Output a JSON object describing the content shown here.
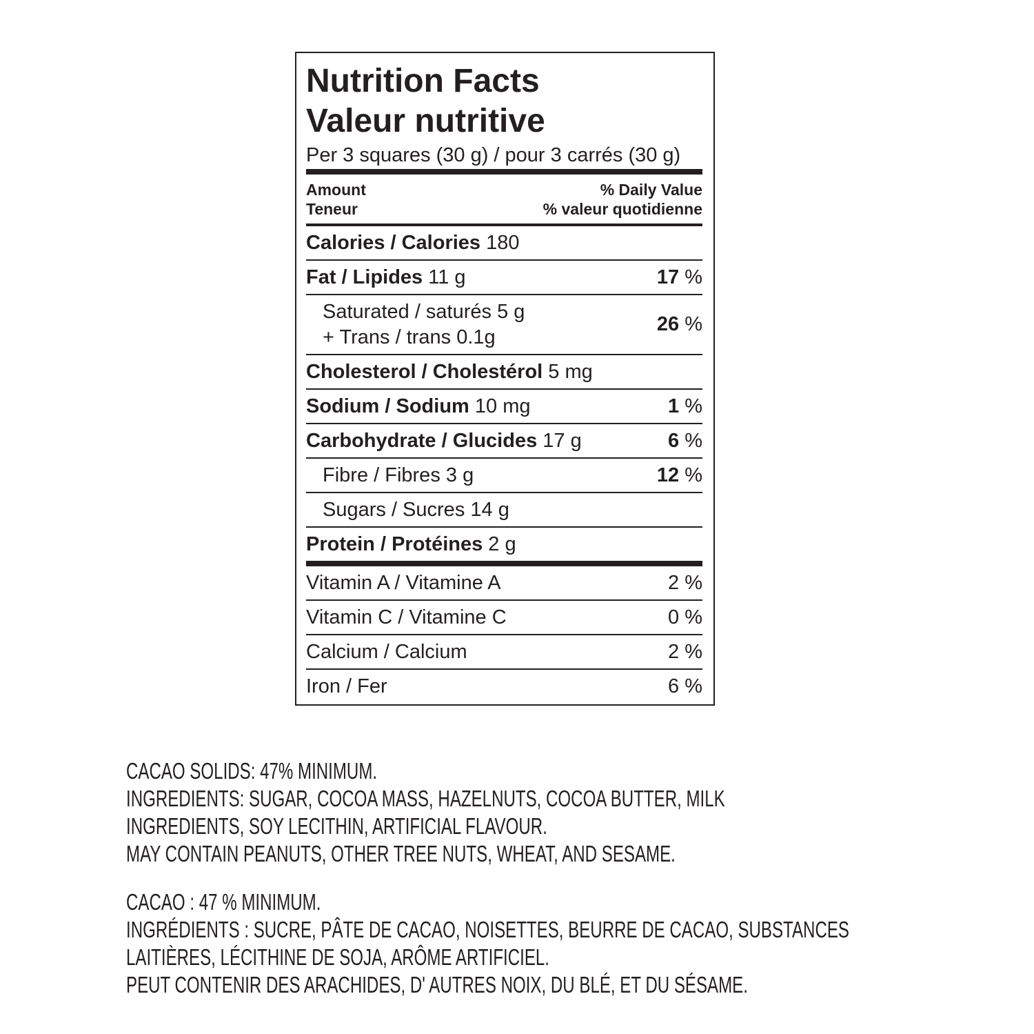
{
  "label": {
    "title": "Nutrition Facts",
    "title_fr": "Valeur nutritive",
    "serving": "Per 3 squares (30 g) / pour 3 carrés (30 g)",
    "amount": "Amount",
    "amount_fr": "Teneur",
    "daily_value": "% Daily Value",
    "daily_value_fr": "% valeur quotidienne",
    "rows": [
      {
        "name": "Calories / Calories",
        "amount": "180"
      },
      {
        "name": "Fat / Lipides",
        "amount": "11 g",
        "dv": "17",
        "dv_unit": "%"
      },
      {
        "name": "Saturated / saturés",
        "amount": "5 g",
        "name2": "+ Trans / trans",
        "amount2": "0.1g",
        "dv": "26",
        "dv_unit": "%"
      },
      {
        "name": "Cholesterol / Cholestérol",
        "amount": "5 mg"
      },
      {
        "name": "Sodium / Sodium",
        "amount": "10 mg",
        "dv": "1",
        "dv_unit": "%"
      },
      {
        "name": "Carbohydrate / Glucides",
        "amount": "17 g",
        "dv": "6",
        "dv_unit": "%"
      },
      {
        "name": "Fibre / Fibres",
        "amount": "3 g",
        "dv": "12",
        "dv_unit": "%"
      },
      {
        "name": "Sugars / Sucres",
        "amount": "14 g"
      },
      {
        "name": "Protein / Protéines",
        "amount": "2 g"
      }
    ],
    "vitamins": [
      {
        "name": "Vitamin A / Vitamine A",
        "dv": "2",
        "dv_unit": "%"
      },
      {
        "name": "Vitamin C / Vitamine C",
        "dv": "0",
        "dv_unit": "%"
      },
      {
        "name": "Calcium / Calcium",
        "dv": "2",
        "dv_unit": "%"
      },
      {
        "name": "Iron / Fer",
        "dv": "6",
        "dv_unit": "%"
      }
    ]
  },
  "ingredients": [
    {
      "lines": [
        "CACAO SOLIDS: 47% MINIMUM.",
        "INGREDIENTS: SUGAR, COCOA MASS, HAZELNUTS, COCOA BUTTER, MILK",
        "INGREDIENTS, SOY LECITHIN, ARTIFICIAL FLAVOUR.",
        "MAY CONTAIN PEANUTS, OTHER TREE NUTS, WHEAT, AND SESAME."
      ]
    },
    {
      "lines": [
        "CACAO : 47 % MINIMUM.",
        "INGRÉDIENTS : SUCRE, PÂTE DE CACAO, NOISETTES, BEURRE DE CACAO, SUBSTANCES",
        "LAITIÈRES, LÉCITHINE DE SOJA, ARÔME ARTIFICIEL.",
        "PEUT CONTENIR DES ARACHIDES, D' AUTRES NOIX, DU BLÉ, ET DU SÉSAME."
      ]
    }
  ]
}
